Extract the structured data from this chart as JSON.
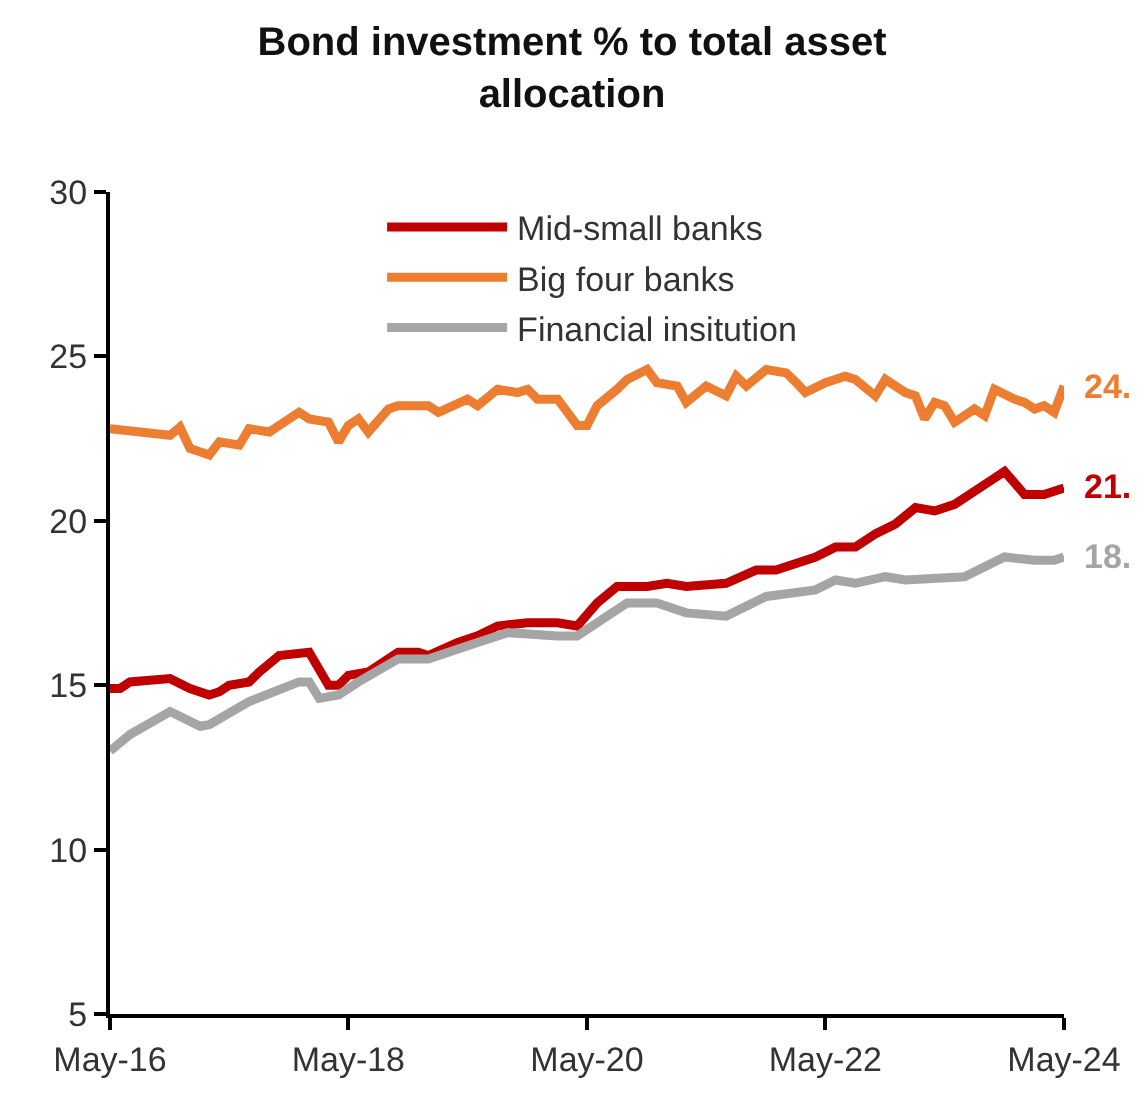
{
  "chart_data": {
    "type": "line",
    "title": "Bond investment % to total asset allocation",
    "xlim": [
      "2016-05",
      "2024-05"
    ],
    "xticks": [
      {
        "value": "2016-05",
        "label": "May-16"
      },
      {
        "value": "2018-05",
        "label": "May-18"
      },
      {
        "value": "2020-05",
        "label": "May-20"
      },
      {
        "value": "2022-05",
        "label": "May-22"
      },
      {
        "value": "2024-05",
        "label": "May-24"
      }
    ],
    "ylim": [
      5,
      30
    ],
    "yticks": [
      5,
      10,
      15,
      20,
      25,
      30
    ],
    "grid": false,
    "legend": "top",
    "marker": "none",
    "line_style": "solid",
    "series": [
      {
        "name": "Mid-small banks",
        "color": "#c00000",
        "x": [
          "2016-05",
          "2016-06",
          "2016-07",
          "2016-11",
          "2017-01",
          "2017-03",
          "2017-04",
          "2017-05",
          "2017-07",
          "2017-08",
          "2017-10",
          "2018-01",
          "2018-03",
          "2018-04",
          "2018-05",
          "2018-07",
          "2018-10",
          "2018-12",
          "2019-01",
          "2019-04",
          "2019-06",
          "2019-08",
          "2019-11",
          "2020-02",
          "2020-04",
          "2020-06",
          "2020-08",
          "2020-11",
          "2021-01",
          "2021-03",
          "2021-07",
          "2021-10",
          "2021-12",
          "2022-04",
          "2022-06",
          "2022-08",
          "2022-10",
          "2022-12",
          "2023-02",
          "2023-04",
          "2023-06",
          "2023-08",
          "2023-11",
          "2024-01",
          "2024-03",
          "2024-05"
        ],
        "values": [
          14.9,
          14.9,
          15.1,
          15.2,
          14.9,
          14.7,
          14.8,
          15.0,
          15.1,
          15.4,
          15.9,
          16.0,
          15.0,
          15.0,
          15.3,
          15.4,
          16.0,
          16.0,
          15.9,
          16.3,
          16.5,
          16.8,
          16.9,
          16.9,
          16.8,
          17.5,
          18.0,
          18.0,
          18.1,
          18.0,
          18.1,
          18.5,
          18.5,
          18.9,
          19.2,
          19.2,
          19.6,
          19.9,
          20.4,
          20.3,
          20.5,
          20.9,
          21.5,
          20.8,
          20.8,
          21.0
        ]
      },
      {
        "name": "Big four banks",
        "color": "#ed7d31",
        "x": [
          "2016-05",
          "2016-11",
          "2016-12",
          "2017-01",
          "2017-03",
          "2017-04",
          "2017-06",
          "2017-07",
          "2017-09",
          "2017-12",
          "2018-01",
          "2018-03",
          "2018-04",
          "2018-05",
          "2018-06",
          "2018-07",
          "2018-09",
          "2018-10",
          "2019-01",
          "2019-02",
          "2019-05",
          "2019-06",
          "2019-08",
          "2019-10",
          "2019-11",
          "2019-12",
          "2020-02",
          "2020-04",
          "2020-05",
          "2020-06",
          "2020-08",
          "2020-09",
          "2020-11",
          "2020-12",
          "2021-02",
          "2021-03",
          "2021-05",
          "2021-07",
          "2021-08",
          "2021-09",
          "2021-11",
          "2022-01",
          "2022-02",
          "2022-03",
          "2022-05",
          "2022-07",
          "2022-08",
          "2022-10",
          "2022-11",
          "2023-01",
          "2023-02",
          "2023-03",
          "2023-04",
          "2023-05",
          "2023-06",
          "2023-08",
          "2023-09",
          "2023-10",
          "2023-12",
          "2024-01",
          "2024-02",
          "2024-03",
          "2024-04",
          "2024-05"
        ],
        "values": [
          22.8,
          22.6,
          22.85,
          22.2,
          22.0,
          22.4,
          22.3,
          22.8,
          22.7,
          23.3,
          23.1,
          23.0,
          22.4,
          22.9,
          23.1,
          22.7,
          23.4,
          23.5,
          23.5,
          23.3,
          23.7,
          23.5,
          24.0,
          23.9,
          24.0,
          23.7,
          23.7,
          22.9,
          22.9,
          23.5,
          24.0,
          24.3,
          24.6,
          24.2,
          24.1,
          23.6,
          24.1,
          23.8,
          24.4,
          24.1,
          24.6,
          24.5,
          24.2,
          23.9,
          24.2,
          24.4,
          24.3,
          23.8,
          24.3,
          23.9,
          23.8,
          23.1,
          23.6,
          23.5,
          23.0,
          23.4,
          23.2,
          24.0,
          23.7,
          23.6,
          23.4,
          23.5,
          23.3,
          24.1
        ]
      },
      {
        "name": "Financial insitution",
        "color": "#a5a5a5",
        "x": [
          "2016-05",
          "2016-07",
          "2016-11",
          "2017-02",
          "2017-03",
          "2017-07",
          "2017-12",
          "2018-01",
          "2018-02",
          "2018-04",
          "2018-06",
          "2018-10",
          "2019-01",
          "2019-06",
          "2019-09",
          "2020-02",
          "2020-04",
          "2020-07",
          "2020-09",
          "2020-12",
          "2021-03",
          "2021-07",
          "2021-11",
          "2022-04",
          "2022-06",
          "2022-08",
          "2022-11",
          "2023-01",
          "2023-07",
          "2023-11",
          "2024-02",
          "2024-04",
          "2024-05"
        ],
        "values": [
          13.0,
          13.5,
          14.2,
          13.75,
          13.8,
          14.5,
          15.1,
          15.1,
          14.6,
          14.7,
          15.1,
          15.8,
          15.8,
          16.3,
          16.6,
          16.5,
          16.5,
          17.1,
          17.5,
          17.5,
          17.2,
          17.1,
          17.7,
          17.9,
          18.2,
          18.1,
          18.3,
          18.2,
          18.3,
          18.9,
          18.8,
          18.8,
          18.9
        ]
      }
    ],
    "annotations": [
      {
        "text": "21.",
        "x": "2024-05",
        "y": 21.0
      },
      {
        "text": "24.",
        "x": "2024-05",
        "y": 24.1
      },
      {
        "text": "18.",
        "x": "2024-05",
        "y": 18.9
      }
    ]
  }
}
